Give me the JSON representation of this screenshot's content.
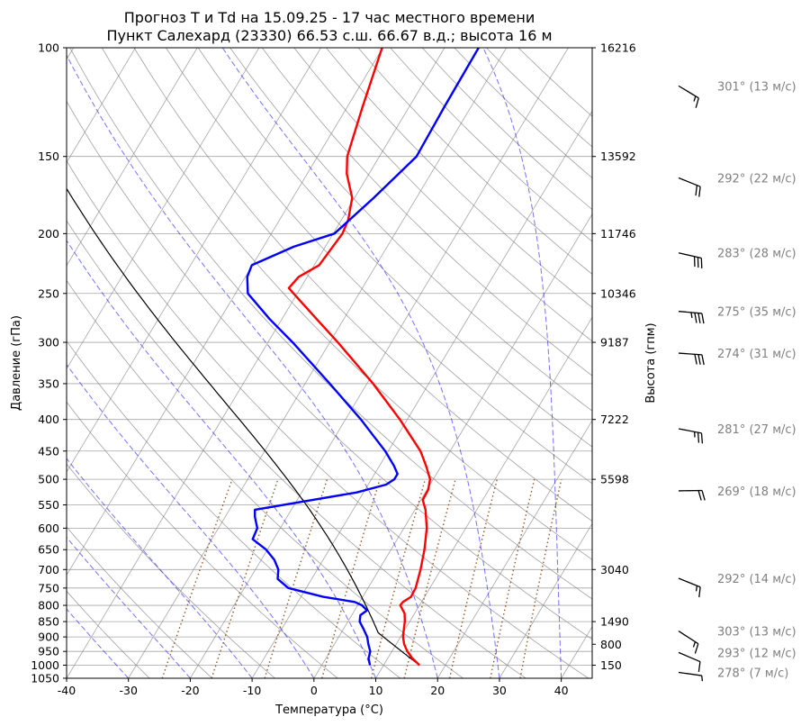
{
  "chart_data": {
    "type": "line",
    "title": "Прогноз T и Td на 15.09.25 - 17 час местного времени",
    "subtitle": "Пункт Салехард (23330) 66.53 с.ш. 66.67 в.д.; высота 16 м",
    "xlabel": "Температура (°C)",
    "ylabel": "Давление (гПа)",
    "y2label": "Высота (гпм)",
    "xlim": [
      -40,
      45
    ],
    "ylim": [
      1050,
      100
    ],
    "y_scale": "log",
    "grid": true,
    "x_ticks": [
      -40,
      -30,
      -20,
      -10,
      0,
      10,
      20,
      30,
      40
    ],
    "p_ticks": [
      100,
      150,
      200,
      250,
      300,
      350,
      400,
      450,
      500,
      550,
      600,
      650,
      700,
      750,
      800,
      850,
      900,
      950,
      1000,
      1050
    ],
    "height_ticks": [
      {
        "p": 100,
        "label": "16216"
      },
      {
        "p": 150,
        "label": "13592"
      },
      {
        "p": 200,
        "label": "11746"
      },
      {
        "p": 250,
        "label": "10346"
      },
      {
        "p": 300,
        "label": "9187"
      },
      {
        "p": 400,
        "label": "7222"
      },
      {
        "p": 500,
        "label": "5598"
      },
      {
        "p": 700,
        "label": "3040"
      },
      {
        "p": 850,
        "label": "1490"
      },
      {
        "p": 925,
        "label": "800"
      },
      {
        "p": 1000,
        "label": "150"
      }
    ],
    "series": [
      {
        "key": "temperature",
        "color": "#ff0000",
        "points": [
          {
            "p": 1000,
            "t": 15.8
          },
          {
            "p": 975,
            "t": 14.0
          },
          {
            "p": 950,
            "t": 12.5
          },
          {
            "p": 925,
            "t": 11.3
          },
          {
            "p": 900,
            "t": 10.4
          },
          {
            "p": 875,
            "t": 9.8
          },
          {
            "p": 850,
            "t": 9.2
          },
          {
            "p": 825,
            "t": 8.4
          },
          {
            "p": 810,
            "t": 7.5
          },
          {
            "p": 800,
            "t": 6.9
          },
          {
            "p": 790,
            "t": 7.0
          },
          {
            "p": 775,
            "t": 7.8
          },
          {
            "p": 750,
            "t": 7.7
          },
          {
            "p": 700,
            "t": 6.7
          },
          {
            "p": 650,
            "t": 5.4
          },
          {
            "p": 600,
            "t": 3.7
          },
          {
            "p": 560,
            "t": 1.7
          },
          {
            "p": 540,
            "t": 0.3
          },
          {
            "p": 520,
            "t": 0.2
          },
          {
            "p": 500,
            "t": -0.5
          },
          {
            "p": 475,
            "t": -2.5
          },
          {
            "p": 450,
            "t": -4.8
          },
          {
            "p": 400,
            "t": -11.2
          },
          {
            "p": 350,
            "t": -19.0
          },
          {
            "p": 300,
            "t": -28.7
          },
          {
            "p": 275,
            "t": -34.4
          },
          {
            "p": 250,
            "t": -40.6
          },
          {
            "p": 245,
            "t": -41.9
          },
          {
            "p": 235,
            "t": -41.4
          },
          {
            "p": 225,
            "t": -39.2
          },
          {
            "p": 200,
            "t": -38.5
          },
          {
            "p": 190,
            "t": -38.9
          },
          {
            "p": 175,
            "t": -40.4
          },
          {
            "p": 160,
            "t": -43.6
          },
          {
            "p": 150,
            "t": -45.2
          },
          {
            "p": 125,
            "t": -47.5
          },
          {
            "p": 100,
            "t": -50.1
          }
        ]
      },
      {
        "key": "dewpoint",
        "color": "#0000ff",
        "points": [
          {
            "p": 1000,
            "t": 7.8
          },
          {
            "p": 975,
            "t": 6.9
          },
          {
            "p": 950,
            "t": 6.5
          },
          {
            "p": 925,
            "t": 5.5
          },
          {
            "p": 900,
            "t": 4.6
          },
          {
            "p": 875,
            "t": 3.3
          },
          {
            "p": 850,
            "t": 1.9
          },
          {
            "p": 830,
            "t": 1.4
          },
          {
            "p": 815,
            "t": 2.0
          },
          {
            "p": 800,
            "t": 0.7
          },
          {
            "p": 790,
            "t": -0.8
          },
          {
            "p": 775,
            "t": -6.4
          },
          {
            "p": 750,
            "t": -12.9
          },
          {
            "p": 725,
            "t": -15.5
          },
          {
            "p": 700,
            "t": -16.3
          },
          {
            "p": 675,
            "t": -17.9
          },
          {
            "p": 650,
            "t": -20.2
          },
          {
            "p": 625,
            "t": -23.4
          },
          {
            "p": 600,
            "t": -23.7
          },
          {
            "p": 575,
            "t": -25.2
          },
          {
            "p": 560,
            "t": -25.9
          },
          {
            "p": 525,
            "t": -11.1
          },
          {
            "p": 510,
            "t": -7.1
          },
          {
            "p": 500,
            "t": -6.3
          },
          {
            "p": 490,
            "t": -6.3
          },
          {
            "p": 475,
            "t": -7.7
          },
          {
            "p": 450,
            "t": -10.5
          },
          {
            "p": 400,
            "t": -17.5
          },
          {
            "p": 350,
            "t": -26.0
          },
          {
            "p": 300,
            "t": -36.0
          },
          {
            "p": 275,
            "t": -42.0
          },
          {
            "p": 250,
            "t": -48.0
          },
          {
            "p": 235,
            "t": -49.7
          },
          {
            "p": 225,
            "t": -50.1
          },
          {
            "p": 210,
            "t": -45.1
          },
          {
            "p": 200,
            "t": -39.8
          },
          {
            "p": 175,
            "t": -36.9
          },
          {
            "p": 150,
            "t": -34.0
          },
          {
            "p": 125,
            "t": -34.3
          },
          {
            "p": 100,
            "t": -34.5
          }
        ]
      }
    ],
    "parcel_color": "#000000",
    "dry_adiabat_color": "#808080",
    "moist_adiabat_color": "#0000ff",
    "mixing_ratio_color": "#8b4513",
    "grid_color": "#808080",
    "winds": [
      {
        "p": 110,
        "label": "301° (13 м/с)",
        "dir": 301,
        "speed": 13
      },
      {
        "p": 155,
        "label": "292° (22 м/с)",
        "dir": 292,
        "speed": 22
      },
      {
        "p": 205,
        "label": "283° (28 м/с)",
        "dir": 283,
        "speed": 28
      },
      {
        "p": 255,
        "label": "275° (35 м/с)",
        "dir": 275,
        "speed": 35
      },
      {
        "p": 298,
        "label": "274° (31 м/с)",
        "dir": 274,
        "speed": 31
      },
      {
        "p": 395,
        "label": "281° (27 м/с)",
        "dir": 281,
        "speed": 27
      },
      {
        "p": 498,
        "label": "269° (18 м/с)",
        "dir": 269,
        "speed": 18
      },
      {
        "p": 690,
        "label": "292° (14 м/с)",
        "dir": 292,
        "speed": 14
      },
      {
        "p": 840,
        "label": "303° (13 м/с)",
        "dir": 303,
        "speed": 13
      },
      {
        "p": 910,
        "label": "293° (12 м/с)",
        "dir": 293,
        "speed": 12
      },
      {
        "p": 980,
        "label": "278° (7 м/с)",
        "dir": 278,
        "speed": 7
      }
    ]
  }
}
